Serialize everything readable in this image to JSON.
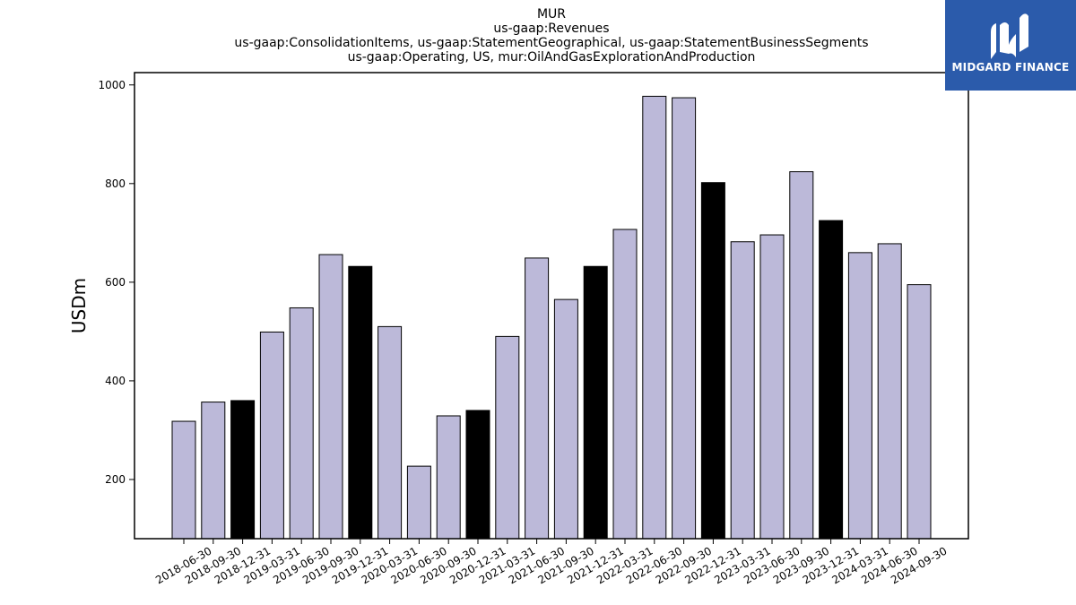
{
  "chart_data": {
    "type": "bar",
    "title_lines": [
      "MUR",
      "us-gaap:Revenues",
      "us-gaap:ConsolidationItems, us-gaap:StatementGeographical, us-gaap:StatementBusinessSegments",
      "us-gaap:Operating, US, mur:OilAndGasExplorationAndProduction"
    ],
    "ylabel": "USDm",
    "xlabel": "",
    "ylim": [
      80,
      1025
    ],
    "yticks": [
      200,
      400,
      600,
      800,
      1000
    ],
    "categories": [
      "2018-06-30",
      "2018-09-30",
      "2018-12-31",
      "2019-03-31",
      "2019-06-30",
      "2019-09-30",
      "2019-12-31",
      "2020-03-31",
      "2020-06-30",
      "2020-09-30",
      "2020-12-31",
      "2021-03-31",
      "2021-06-30",
      "2021-09-30",
      "2021-12-31",
      "2022-03-31",
      "2022-06-30",
      "2022-09-30",
      "2022-12-31",
      "2023-03-31",
      "2023-06-30",
      "2023-09-30",
      "2023-12-31",
      "2024-03-31",
      "2024-06-30",
      "2024-09-30"
    ],
    "values": [
      318,
      357,
      360,
      499,
      548,
      656,
      632,
      510,
      227,
      329,
      340,
      490,
      649,
      565,
      632,
      707,
      977,
      974,
      802,
      682,
      696,
      824,
      725,
      660,
      678,
      595
    ],
    "colors": {
      "quarter": "#bcb9d9",
      "year_end": "#000000",
      "edge": "#000000"
    },
    "grid": false,
    "legend": "none"
  },
  "logo": {
    "text": "MIDGARD FINANCE",
    "background": "#2b5bab"
  }
}
